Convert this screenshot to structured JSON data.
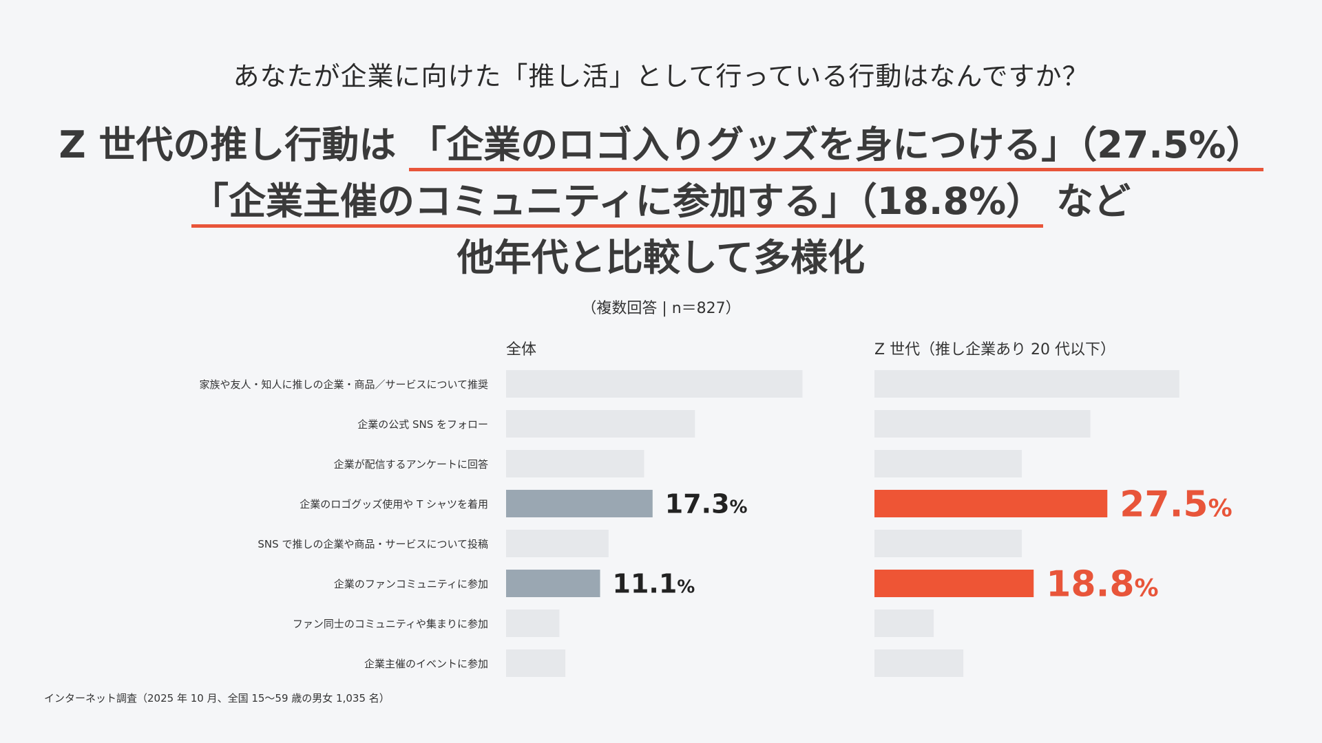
{
  "question": "あなたが企業に向けた「推し活」として行っている行動はなんですか？",
  "headline": {
    "line1_pre": "Z 世代の推し行動は ",
    "line1_hl": "「企業のロゴ入りグッズを身につける」（27.5%）",
    "line2_hl": "「企業主催のコミュニティに参加する」（18.8%）",
    "line2_post": " など",
    "line3": "他年代と比較して多様化"
  },
  "note": "（複数回答 | n＝827）",
  "source": "インターネット調査（2025 年 10 月、全国 15〜59 歳の男女 1,035 名）",
  "colors": {
    "bar_default": "#e6e8eb",
    "bar_highlight_all": "#9aa7b2",
    "bar_highlight_z": "#ee5535",
    "label_highlight_all": "#222222",
    "label_highlight_z": "#e8553a"
  },
  "chart_data": {
    "type": "bar",
    "orientation": "horizontal",
    "xlim": [
      0,
      50
    ],
    "categories": [
      "家族や友人・知人に推しの企業・商品／サービスについて推奨",
      "企業の公式 SNS をフォロー",
      "企業が配信するアンケートに回答",
      "企業のロゴグッズ使用や T シャツを着用",
      "SNS で推しの企業や商品・サービスについて投稿",
      "企業のファンコミュニティに参加",
      "ファン同士のコミュニティや集まりに参加",
      "企業主催のイベントに参加"
    ],
    "series": [
      {
        "name": "全体",
        "values": [
          35,
          22.3,
          16.3,
          17.3,
          12.1,
          11.1,
          6.3,
          7.0
        ],
        "highlight": [
          false,
          false,
          false,
          true,
          false,
          true,
          false,
          false
        ],
        "labels": [
          "",
          "",
          "",
          "17.3",
          "",
          "11.1",
          "",
          ""
        ]
      },
      {
        "name": "Z 世代（推し企業あり 20 代以下）",
        "values": [
          36,
          25.5,
          17.4,
          27.5,
          17.4,
          18.8,
          7.0,
          10.5
        ],
        "highlight": [
          false,
          false,
          false,
          true,
          false,
          true,
          false,
          false
        ],
        "labels": [
          "",
          "",
          "",
          "27.5",
          "",
          "18.8",
          "",
          ""
        ]
      }
    ],
    "value_unit": "%"
  }
}
